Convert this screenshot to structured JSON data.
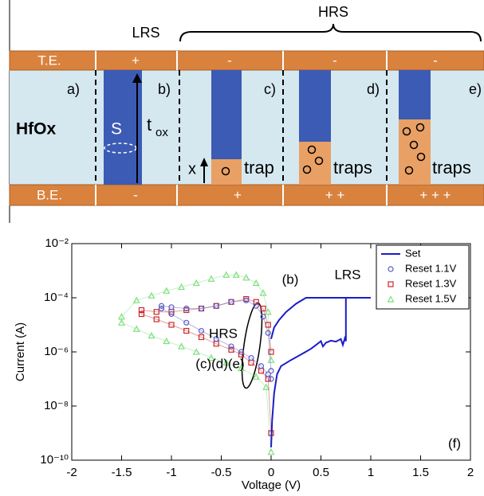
{
  "diagram": {
    "lrs": "LRS",
    "hrs": "HRS",
    "te_label": "T.E.",
    "be_label": "B.E.",
    "te_signs": [
      "+",
      "-",
      "-",
      "-"
    ],
    "be_signs": [
      "-",
      "+",
      "+ +",
      "+ + +"
    ],
    "panel_labels": [
      "a)",
      "b)",
      "c)",
      "d)",
      "e)"
    ],
    "oxide": "HfOx",
    "filament": "S",
    "thickness": "t",
    "thickness_sub": "ox",
    "x_label": "x",
    "trap_labels": [
      "trap",
      "traps",
      "traps"
    ]
  },
  "chart_data": {
    "type": "line",
    "x_label": "Voltage (V)",
    "y_label": "Current (A)",
    "xlim": [
      -2,
      2
    ],
    "xticks": [
      -2,
      -1.5,
      -1,
      -0.5,
      0,
      0.5,
      1,
      1.5,
      2
    ],
    "ylim": [
      1e-10,
      0.01
    ],
    "ylog": true,
    "yticks": [
      {
        "value": 1e-10,
        "label": "10⁻¹⁰"
      },
      {
        "value": 1e-08,
        "label": "10⁻⁸"
      },
      {
        "value": 1e-06,
        "label": "10⁻⁶"
      },
      {
        "value": 0.0001,
        "label": "10⁻⁴"
      },
      {
        "value": 0.01,
        "label": "10⁻²"
      }
    ],
    "legend": "upper right",
    "annotations": [
      "(b)",
      "LRS",
      "HRS",
      "(c)(d)(e)",
      "(f)"
    ],
    "series": [
      {
        "name": "Set",
        "color": "#1c1cc8",
        "mode": "line",
        "x": [
          0,
          0.01,
          0.03,
          0.06,
          0.1,
          0.2,
          0.3,
          0.4,
          0.45,
          0.5,
          0.52,
          0.55,
          0.6,
          0.65,
          0.7,
          0.72,
          0.74,
          0.75,
          0.75,
          1.0,
          0.75,
          0.5,
          0.35,
          0.25,
          0.15,
          0.08,
          0.03,
          0
        ],
        "values": [
          3e-10,
          3e-09,
          3e-08,
          1.5e-07,
          3e-07,
          5e-07,
          8e-07,
          1.3e-06,
          1.8e-06,
          2.5e-06,
          1.6e-06,
          2.2e-06,
          2.6e-06,
          2.4e-06,
          3e-06,
          1.8e-06,
          3.2e-06,
          2.5e-06,
          0.0001,
          0.0001,
          0.0001,
          0.0001,
          0.0001,
          6e-05,
          3e-05,
          1.5e-05,
          8e-06,
          3e-06
        ]
      },
      {
        "name": "Reset 1.1V",
        "color": "#5a5ac8",
        "mode": "markers",
        "marker": "circle",
        "x": [
          0,
          -0.03,
          -0.08,
          -0.15,
          -0.25,
          -0.4,
          -0.55,
          -0.7,
          -0.85,
          -1.0,
          -1.1,
          -1.1,
          -1.0,
          -0.85,
          -0.7,
          -0.55,
          -0.4,
          -0.3,
          -0.2,
          -0.1,
          -0.03,
          0
        ],
        "values": [
          2e-07,
          5e-06,
          2e-05,
          5e-05,
          8e-05,
          7e-05,
          5e-05,
          4e-05,
          4e-05,
          4.5e-05,
          5e-05,
          4e-05,
          2.5e-05,
          1.2e-05,
          6e-06,
          3e-06,
          1.6e-06,
          1e-06,
          6e-07,
          3e-07,
          1.5e-07,
          1e-07
        ]
      },
      {
        "name": "Reset 1.3V",
        "color": "#c82828",
        "mode": "markers",
        "marker": "square",
        "x": [
          0,
          -0.03,
          -0.08,
          -0.15,
          -0.25,
          -0.4,
          -0.55,
          -0.7,
          -0.85,
          -1.0,
          -1.15,
          -1.3,
          -1.3,
          -1.15,
          -1.0,
          -0.85,
          -0.7,
          -0.55,
          -0.4,
          -0.3,
          -0.2,
          -0.1,
          -0.03,
          0
        ],
        "values": [
          1e-06,
          1e-05,
          4e-05,
          7e-05,
          9e-05,
          7e-05,
          5e-05,
          4e-05,
          3.5e-05,
          3e-05,
          3e-05,
          3.5e-05,
          2.5e-05,
          1.6e-05,
          1e-05,
          6e-06,
          3.5e-06,
          2e-06,
          1.2e-06,
          8e-07,
          4e-07,
          2e-07,
          1e-07,
          1e-09
        ]
      },
      {
        "name": "Reset 1.5V",
        "color": "#7ee07e",
        "mode": "markers",
        "marker": "triangle",
        "x": [
          0,
          -0.03,
          -0.08,
          -0.15,
          -0.25,
          -0.35,
          -0.45,
          -0.6,
          -0.75,
          -0.9,
          -1.05,
          -1.2,
          -1.35,
          -1.5,
          -1.5,
          -1.35,
          -1.2,
          -1.05,
          -0.9,
          -0.75,
          -0.6,
          -0.45,
          -0.3,
          -0.15,
          -0.05,
          0
        ],
        "values": [
          5e-07,
          3e-05,
          0.00015,
          0.00035,
          0.00055,
          0.0007,
          0.0007,
          0.0005,
          0.00035,
          0.00025,
          0.00018,
          0.00012,
          8e-05,
          2e-05,
          1.2e-05,
          7e-06,
          4e-06,
          2.5e-06,
          1.6e-06,
          1e-06,
          6e-07,
          4e-07,
          2.5e-07,
          1.2e-07,
          5e-08,
          2e-10
        ]
      }
    ]
  }
}
